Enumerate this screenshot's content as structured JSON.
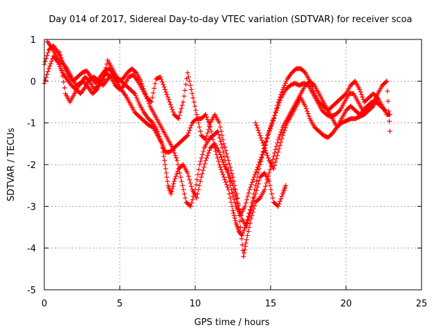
{
  "chart_data": {
    "type": "scatter",
    "title": "Day 014 of 2017, Sidereal Day-to-day VTEC variation (SDTVAR) for receiver scoa",
    "xlabel": "GPS time / hours",
    "ylabel": "SDTVAR / TECUs",
    "xlim": [
      0,
      25
    ],
    "ylim": [
      -5,
      1
    ],
    "xticks": [
      "0",
      "5",
      "10",
      "15",
      "20",
      "25"
    ],
    "yticks": [
      "1",
      "0",
      "-1",
      "-2",
      "-3",
      "-4",
      "-5"
    ],
    "grid": true,
    "marker": "plus",
    "color": "#ff0000",
    "series": [
      {
        "points": [
          [
            0.0,
            -0.05
          ],
          [
            0.3,
            0.3
          ],
          [
            0.6,
            0.6
          ],
          [
            0.9,
            0.45
          ],
          [
            1.2,
            0.2
          ],
          [
            1.5,
            0.05
          ],
          [
            1.8,
            -0.1
          ],
          [
            2.1,
            -0.2
          ],
          [
            2.4,
            -0.3
          ],
          [
            2.7,
            -0.15
          ],
          [
            3.0,
            0.05
          ],
          [
            3.3,
            0.1
          ],
          [
            3.6,
            0.0
          ],
          [
            3.9,
            -0.1
          ],
          [
            4.2,
            0.05
          ],
          [
            4.5,
            0.15
          ],
          [
            4.8,
            0.0
          ],
          [
            5.1,
            -0.2
          ],
          [
            5.4,
            -0.35
          ],
          [
            5.7,
            -0.55
          ],
          [
            6.0,
            -0.75
          ],
          [
            6.3,
            -0.85
          ],
          [
            6.6,
            -0.95
          ],
          [
            6.9,
            -1.05
          ],
          [
            7.2,
            -1.1
          ],
          [
            7.5,
            -1.3
          ],
          [
            7.8,
            -1.5
          ],
          [
            8.0,
            -1.7
          ],
          [
            8.3,
            -1.7
          ],
          [
            8.6,
            -1.6
          ],
          [
            8.9,
            -1.5
          ],
          [
            9.2,
            -1.4
          ],
          [
            9.5,
            -1.3
          ],
          [
            9.8,
            -1.0
          ],
          [
            10.1,
            -0.9
          ],
          [
            10.4,
            -0.9
          ],
          [
            10.7,
            -0.8
          ],
          [
            11.0,
            -1.1
          ],
          [
            11.3,
            -1.6
          ],
          [
            11.6,
            -2.0
          ],
          [
            11.9,
            -2.3
          ],
          [
            12.2,
            -2.6
          ],
          [
            12.5,
            -3.1
          ],
          [
            12.7,
            -3.4
          ],
          [
            12.9,
            -3.6
          ],
          [
            13.1,
            -3.7
          ],
          [
            13.4,
            -3.4
          ],
          [
            13.7,
            -3.0
          ],
          [
            14.0,
            -2.5
          ],
          [
            14.3,
            -2.0
          ],
          [
            14.6,
            -1.6
          ],
          [
            14.9,
            -1.2
          ],
          [
            15.2,
            -0.9
          ],
          [
            15.5,
            -0.5
          ],
          [
            15.8,
            -0.2
          ],
          [
            16.1,
            0.05
          ],
          [
            16.4,
            0.2
          ],
          [
            16.7,
            0.3
          ],
          [
            17.0,
            0.3
          ],
          [
            17.3,
            0.2
          ],
          [
            17.6,
            0.0
          ],
          [
            17.9,
            -0.3
          ],
          [
            18.2,
            -0.5
          ],
          [
            18.5,
            -0.6
          ],
          [
            18.8,
            -0.7
          ],
          [
            19.1,
            -0.6
          ],
          [
            19.4,
            -0.5
          ],
          [
            19.7,
            -0.4
          ],
          [
            20.0,
            -0.3
          ],
          [
            20.3,
            -0.1
          ],
          [
            20.6,
            0.0
          ],
          [
            20.9,
            -0.2
          ],
          [
            21.2,
            -0.5
          ],
          [
            21.5,
            -0.4
          ],
          [
            21.8,
            -0.3
          ],
          [
            22.1,
            -0.4
          ],
          [
            22.4,
            -0.6
          ],
          [
            22.7,
            -0.8
          ],
          [
            22.9,
            -0.8
          ]
        ]
      },
      {
        "points": [
          [
            0.0,
            0.4
          ],
          [
            0.3,
            0.75
          ],
          [
            0.6,
            0.85
          ],
          [
            0.9,
            0.7
          ],
          [
            1.2,
            0.45
          ],
          [
            1.5,
            0.3
          ],
          [
            1.8,
            0.1
          ],
          [
            2.1,
            -0.1
          ],
          [
            2.4,
            -0.05
          ],
          [
            2.7,
            0.1
          ],
          [
            3.0,
            0.0
          ],
          [
            3.3,
            -0.2
          ],
          [
            3.6,
            -0.1
          ],
          [
            3.9,
            0.05
          ],
          [
            4.2,
            0.5
          ],
          [
            4.5,
            0.3
          ],
          [
            4.8,
            0.1
          ],
          [
            5.1,
            0.0
          ],
          [
            5.4,
            -0.1
          ],
          [
            5.7,
            -0.2
          ],
          [
            6.0,
            -0.3
          ],
          [
            6.3,
            -0.55
          ],
          [
            6.6,
            -0.75
          ],
          [
            6.9,
            -0.9
          ],
          [
            7.2,
            -1.0
          ],
          [
            7.5,
            -1.2
          ],
          [
            7.8,
            -1.5
          ],
          [
            8.0,
            -2.0
          ],
          [
            8.2,
            -2.5
          ],
          [
            8.4,
            -2.7
          ],
          [
            8.6,
            -2.4
          ],
          [
            8.9,
            -2.1
          ],
          [
            9.2,
            -2.0
          ],
          [
            9.5,
            -2.2
          ],
          [
            9.8,
            -2.6
          ],
          [
            10.1,
            -2.8
          ],
          [
            10.4,
            -2.3
          ],
          [
            10.7,
            -1.9
          ],
          [
            11.0,
            -1.6
          ],
          [
            11.3,
            -1.5
          ],
          [
            11.6,
            -1.7
          ],
          [
            11.9,
            -2.0
          ],
          [
            12.2,
            -2.2
          ],
          [
            12.5,
            -2.5
          ],
          [
            12.8,
            -2.9
          ],
          [
            13.1,
            -3.3
          ],
          [
            13.4,
            -3.5
          ],
          [
            13.7,
            -3.1
          ],
          [
            14.0,
            -2.7
          ],
          [
            14.3,
            -2.3
          ],
          [
            14.6,
            -2.2
          ],
          [
            14.9,
            -2.4
          ],
          [
            15.2,
            -2.9
          ],
          [
            15.5,
            -3.0
          ],
          [
            15.8,
            -2.7
          ],
          [
            16.0,
            -2.5
          ]
        ]
      },
      {
        "points": [
          [
            0.2,
            0.95
          ],
          [
            0.5,
            0.8
          ],
          [
            0.8,
            0.6
          ],
          [
            1.1,
            0.4
          ],
          [
            1.4,
            -0.3
          ],
          [
            1.7,
            -0.5
          ],
          [
            2.0,
            -0.3
          ],
          [
            2.3,
            -0.1
          ],
          [
            2.6,
            0.0
          ],
          [
            2.9,
            -0.15
          ],
          [
            3.2,
            -0.3
          ],
          [
            3.5,
            -0.2
          ],
          [
            3.8,
            0.0
          ],
          [
            4.1,
            0.2
          ],
          [
            4.4,
            0.1
          ],
          [
            4.7,
            -0.1
          ],
          [
            5.0,
            -0.2
          ],
          [
            5.3,
            -0.1
          ],
          [
            5.6,
            0.1
          ],
          [
            5.9,
            0.15
          ],
          [
            6.2,
            0.0
          ],
          [
            6.5,
            -0.2
          ],
          [
            6.8,
            -0.4
          ],
          [
            7.1,
            -0.5
          ],
          [
            7.4,
            0.05
          ],
          [
            7.7,
            0.1
          ],
          [
            8.0,
            -0.2
          ],
          [
            8.3,
            -0.5
          ],
          [
            8.6,
            -0.8
          ],
          [
            8.9,
            -0.9
          ],
          [
            9.2,
            -0.5
          ],
          [
            9.5,
            0.2
          ],
          [
            9.8,
            -0.3
          ],
          [
            10.1,
            -0.8
          ],
          [
            10.4,
            -1.3
          ],
          [
            10.7,
            -1.4
          ],
          [
            11.0,
            -1.0
          ],
          [
            11.3,
            -0.8
          ],
          [
            11.6,
            -1.0
          ],
          [
            11.9,
            -1.5
          ],
          [
            12.2,
            -1.9
          ],
          [
            12.5,
            -2.3
          ],
          [
            12.8,
            -2.8
          ],
          [
            13.0,
            -3.5
          ],
          [
            13.2,
            -4.2
          ],
          [
            13.4,
            -3.8
          ],
          [
            13.7,
            -3.3
          ],
          [
            14.0,
            -2.9
          ],
          [
            14.3,
            -2.8
          ],
          [
            14.6,
            -2.6
          ],
          [
            14.9,
            -2.2
          ],
          [
            15.2,
            -1.8
          ],
          [
            15.5,
            -1.4
          ],
          [
            15.8,
            -1.1
          ],
          [
            16.1,
            -0.9
          ],
          [
            16.4,
            -0.7
          ],
          [
            16.7,
            -0.5
          ],
          [
            17.0,
            -0.3
          ],
          [
            17.3,
            -0.1
          ],
          [
            17.6,
            0.0
          ],
          [
            17.9,
            -0.1
          ],
          [
            18.2,
            -0.3
          ],
          [
            18.5,
            -0.5
          ],
          [
            18.8,
            -0.7
          ],
          [
            19.1,
            -0.9
          ],
          [
            19.4,
            -1.1
          ],
          [
            19.7,
            -0.9
          ],
          [
            20.0,
            -0.7
          ],
          [
            20.3,
            -0.6
          ],
          [
            20.6,
            -0.7
          ],
          [
            20.9,
            -0.8
          ],
          [
            21.2,
            -0.7
          ],
          [
            21.5,
            -0.6
          ],
          [
            21.8,
            -0.5
          ],
          [
            22.1,
            -0.3
          ],
          [
            22.4,
            -0.1
          ],
          [
            22.7,
            0.0
          ],
          [
            22.9,
            -1.2
          ]
        ]
      },
      {
        "points": [
          [
            1.0,
            0.7
          ],
          [
            1.3,
            0.35
          ],
          [
            1.6,
            0.15
          ],
          [
            1.9,
            0.0
          ],
          [
            2.2,
            0.1
          ],
          [
            2.5,
            0.2
          ],
          [
            2.8,
            0.25
          ],
          [
            3.1,
            0.1
          ],
          [
            3.4,
            -0.05
          ],
          [
            3.7,
            0.1
          ],
          [
            4.0,
            0.25
          ],
          [
            4.3,
            0.3
          ],
          [
            4.6,
            0.15
          ],
          [
            4.9,
            0.0
          ],
          [
            5.2,
            0.05
          ],
          [
            5.5,
            0.2
          ],
          [
            5.8,
            0.3
          ],
          [
            6.1,
            0.2
          ],
          [
            6.4,
            0.0
          ],
          [
            6.7,
            -0.3
          ],
          [
            7.0,
            -0.6
          ],
          [
            7.3,
            -0.8
          ],
          [
            7.6,
            -1.0
          ],
          [
            7.9,
            -1.2
          ],
          [
            8.2,
            -1.4
          ],
          [
            8.5,
            -1.6
          ],
          [
            8.8,
            -1.9
          ],
          [
            9.1,
            -2.4
          ],
          [
            9.4,
            -2.9
          ],
          [
            9.7,
            -3.0
          ],
          [
            10.0,
            -2.6
          ],
          [
            10.3,
            -2.0
          ],
          [
            10.6,
            -1.6
          ],
          [
            10.9,
            -1.4
          ],
          [
            11.2,
            -1.3
          ],
          [
            11.5,
            -1.2
          ],
          [
            11.8,
            -1.6
          ],
          [
            12.1,
            -2.1
          ],
          [
            12.4,
            -2.6
          ],
          [
            12.7,
            -3.0
          ],
          [
            13.0,
            -3.2
          ],
          [
            13.3,
            -3.0
          ],
          [
            13.6,
            -2.6
          ],
          [
            13.9,
            -2.3
          ],
          [
            14.2,
            -2.0
          ],
          [
            14.5,
            -1.7
          ],
          [
            14.8,
            -1.3
          ],
          [
            15.1,
            -1.0
          ],
          [
            15.4,
            -0.7
          ],
          [
            15.7,
            -0.4
          ],
          [
            16.0,
            -0.2
          ],
          [
            16.3,
            -0.1
          ],
          [
            16.6,
            -0.05
          ],
          [
            16.9,
            -0.1
          ],
          [
            17.2,
            -0.05
          ],
          [
            17.5,
            -0.1
          ],
          [
            17.8,
            -0.3
          ],
          [
            18.1,
            -0.5
          ],
          [
            18.4,
            -0.7
          ],
          [
            18.7,
            -0.8
          ],
          [
            19.0,
            -0.85
          ],
          [
            19.3,
            -0.8
          ],
          [
            19.6,
            -0.7
          ],
          [
            19.9,
            -0.5
          ],
          [
            20.2,
            -0.3
          ],
          [
            20.5,
            -0.3
          ],
          [
            20.8,
            -0.5
          ],
          [
            21.1,
            -0.7
          ],
          [
            21.4,
            -0.6
          ],
          [
            21.7,
            -0.5
          ],
          [
            22.0,
            -0.5
          ],
          [
            22.3,
            -0.6
          ],
          [
            22.6,
            -0.7
          ]
        ]
      },
      {
        "points": [
          [
            14.0,
            -1.0
          ],
          [
            14.3,
            -1.3
          ],
          [
            14.6,
            -1.6
          ],
          [
            14.9,
            -1.9
          ],
          [
            15.2,
            -2.1
          ],
          [
            15.5,
            -1.7
          ],
          [
            15.8,
            -1.3
          ],
          [
            16.1,
            -1.0
          ],
          [
            16.4,
            -0.8
          ],
          [
            16.7,
            -0.6
          ],
          [
            17.0,
            -0.4
          ],
          [
            17.3,
            -0.6
          ],
          [
            17.6,
            -0.9
          ],
          [
            17.9,
            -1.1
          ],
          [
            18.2,
            -1.2
          ],
          [
            18.5,
            -1.3
          ],
          [
            18.8,
            -1.35
          ],
          [
            19.1,
            -1.25
          ],
          [
            19.4,
            -1.1
          ],
          [
            19.7,
            -1.0
          ],
          [
            20.0,
            -0.95
          ],
          [
            20.3,
            -0.9
          ],
          [
            20.6,
            -0.9
          ],
          [
            20.9,
            -0.85
          ],
          [
            21.2,
            -0.8
          ],
          [
            21.5,
            -0.7
          ],
          [
            21.8,
            -0.6
          ],
          [
            22.1,
            -0.4
          ]
        ]
      }
    ]
  }
}
